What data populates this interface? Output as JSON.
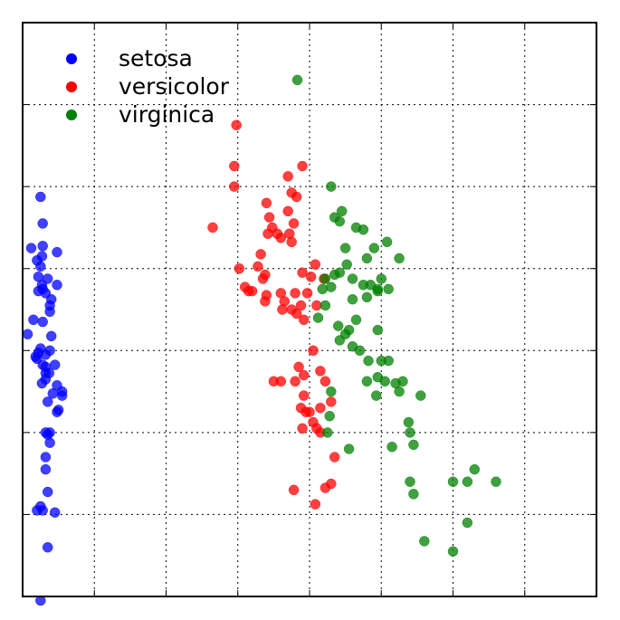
{
  "chart_data": {
    "type": "scatter",
    "title": "",
    "xlabel": "",
    "ylabel": "",
    "xlim": [
      -4,
      4
    ],
    "ylim": [
      -1.5,
      1.3
    ],
    "grid": true,
    "tick_labels_visible": false,
    "legend_position": "top-left",
    "series": [
      {
        "name": "setosa",
        "color": "#0000ff",
        "points": [
          [
            -3.75,
            0.45
          ],
          [
            -3.72,
            0.32
          ],
          [
            -3.72,
            0.21
          ],
          [
            -3.73,
            0.16
          ],
          [
            -3.8,
            0.14
          ],
          [
            -3.75,
            0.11
          ],
          [
            -3.73,
            0.02
          ],
          [
            -3.78,
            0.06
          ],
          [
            -3.72,
            0.0
          ],
          [
            -3.65,
            0.05
          ],
          [
            -3.85,
            -0.15
          ],
          [
            -3.72,
            -0.16
          ],
          [
            -3.62,
            -0.11
          ],
          [
            -3.6,
            -0.05
          ],
          [
            -3.62,
            -0.08
          ],
          [
            -3.68,
            -0.02
          ],
          [
            -3.78,
            -0.01
          ],
          [
            -3.93,
            -0.22
          ],
          [
            -3.88,
            0.2
          ],
          [
            -3.52,
            0.18
          ],
          [
            -3.52,
            0.02
          ],
          [
            -3.75,
            -0.29
          ],
          [
            -3.78,
            -0.31
          ],
          [
            -3.8,
            -0.34
          ],
          [
            -3.68,
            -0.32
          ],
          [
            -3.62,
            -0.3
          ],
          [
            -3.72,
            -0.37
          ],
          [
            -3.68,
            -0.38
          ],
          [
            -3.82,
            -0.33
          ],
          [
            -3.55,
            -0.37
          ],
          [
            -3.63,
            -0.41
          ],
          [
            -3.68,
            -0.41
          ],
          [
            -3.68,
            -0.44
          ],
          [
            -3.73,
            -0.46
          ],
          [
            -3.58,
            -0.51
          ],
          [
            -3.52,
            -0.47
          ],
          [
            -3.65,
            -0.55
          ],
          [
            -3.52,
            -0.6
          ],
          [
            -3.5,
            -0.59
          ],
          [
            -3.62,
            -0.7
          ],
          [
            -3.65,
            -0.71
          ],
          [
            -3.68,
            -0.7
          ],
          [
            -3.62,
            -0.75
          ],
          [
            -3.68,
            -0.82
          ],
          [
            -3.68,
            -0.88
          ],
          [
            -3.65,
            -0.99
          ],
          [
            -3.75,
            -1.06
          ],
          [
            -3.72,
            -1.08
          ],
          [
            -3.8,
            -1.08
          ],
          [
            -3.55,
            -1.09
          ],
          [
            -3.65,
            -1.26
          ],
          [
            -3.75,
            -1.52
          ],
          [
            -3.6,
            -0.23
          ],
          [
            -3.45,
            -0.5
          ],
          [
            -3.45,
            -0.52
          ]
        ]
      },
      {
        "name": "versicolor",
        "color": "#ff0000",
        "points": [
          [
            -1.02,
            0.8
          ],
          [
            -1.05,
            0.6
          ],
          [
            -1.05,
            0.5
          ],
          [
            -0.1,
            0.6
          ],
          [
            -0.3,
            0.55
          ],
          [
            -0.25,
            0.47
          ],
          [
            -0.6,
            0.42
          ],
          [
            -0.3,
            0.38
          ],
          [
            -0.22,
            0.32
          ],
          [
            -0.28,
            0.27
          ],
          [
            -0.25,
            0.23
          ],
          [
            -0.45,
            0.27
          ],
          [
            -0.52,
            0.3
          ],
          [
            -0.56,
            0.35
          ],
          [
            -0.58,
            0.27
          ],
          [
            -0.68,
            0.17
          ],
          [
            -0.72,
            0.11
          ],
          [
            -0.62,
            0.07
          ],
          [
            -0.98,
            0.1
          ],
          [
            -0.85,
            -0.01
          ],
          [
            -0.8,
            -0.01
          ],
          [
            -0.65,
            0.05
          ],
          [
            -0.62,
            -0.06
          ],
          [
            -0.6,
            -0.03
          ],
          [
            -0.35,
            -0.06
          ],
          [
            -0.25,
            -0.1
          ],
          [
            -0.18,
            -0.12
          ],
          [
            -0.2,
            -0.02
          ],
          [
            0.08,
            0.12
          ],
          [
            0.2,
            0.05
          ],
          [
            -0.1,
            0.08
          ],
          [
            -0.03,
            -0.02
          ],
          [
            0.02,
            0.06
          ],
          [
            -0.08,
            -0.15
          ],
          [
            -0.12,
            -0.08
          ],
          [
            0.1,
            -0.08
          ],
          [
            -0.38,
            -0.1
          ],
          [
            -0.4,
            -0.02
          ],
          [
            -0.5,
            -0.45
          ],
          [
            -0.4,
            -0.45
          ],
          [
            -0.08,
            -0.42
          ],
          [
            -0.15,
            -0.38
          ],
          [
            -0.2,
            -0.45
          ],
          [
            -0.08,
            -0.52
          ],
          [
            0.15,
            -0.4
          ],
          [
            0.0,
            -0.6
          ],
          [
            0.1,
            -0.68
          ],
          [
            -0.05,
            -0.6
          ],
          [
            -0.12,
            -0.58
          ],
          [
            0.22,
            -0.45
          ],
          [
            0.3,
            -0.55
          ],
          [
            -0.22,
            -0.98
          ],
          [
            -0.1,
            -0.68
          ],
          [
            0.05,
            -0.65
          ],
          [
            0.15,
            -0.58
          ],
          [
            0.35,
            -0.82
          ],
          [
            0.3,
            -0.95
          ],
          [
            0.22,
            -0.97
          ],
          [
            0.08,
            -1.05
          ],
          [
            0.15,
            -0.7
          ],
          [
            -1.35,
            0.3
          ],
          [
            -0.9,
            0.01
          ],
          [
            -0.18,
            0.45
          ],
          [
            -0.4,
            0.25
          ],
          [
            0.05,
            -0.3
          ]
        ]
      },
      {
        "name": "virginica",
        "color": "#008000",
        "points": [
          [
            -0.17,
            1.02
          ],
          [
            0.3,
            0.5
          ],
          [
            0.35,
            0.35
          ],
          [
            0.45,
            0.38
          ],
          [
            0.42,
            0.33
          ],
          [
            0.5,
            0.2
          ],
          [
            0.65,
            0.3
          ],
          [
            0.75,
            0.29
          ],
          [
            0.9,
            0.2
          ],
          [
            0.8,
            0.15
          ],
          [
            1.08,
            0.23
          ],
          [
            1.25,
            0.15
          ],
          [
            0.42,
            0.08
          ],
          [
            0.52,
            0.12
          ],
          [
            0.6,
            0.05
          ],
          [
            0.75,
            0.02
          ],
          [
            0.85,
            0.02
          ],
          [
            0.95,
            -0.01
          ],
          [
            1.1,
            0.0
          ],
          [
            1.0,
            0.05
          ],
          [
            0.95,
            0.0
          ],
          [
            0.8,
            -0.04
          ],
          [
            0.35,
            0.07
          ],
          [
            0.22,
            0.05
          ],
          [
            0.18,
            0.0
          ],
          [
            0.22,
            -0.08
          ],
          [
            0.12,
            -0.14
          ],
          [
            0.4,
            -0.18
          ],
          [
            0.5,
            -0.22
          ],
          [
            0.55,
            -0.2
          ],
          [
            0.42,
            -0.25
          ],
          [
            0.65,
            -0.15
          ],
          [
            0.95,
            -0.2
          ],
          [
            0.82,
            -0.35
          ],
          [
            0.7,
            -0.3
          ],
          [
            1.0,
            -0.35
          ],
          [
            1.1,
            -0.35
          ],
          [
            1.05,
            -0.45
          ],
          [
            1.2,
            -0.46
          ],
          [
            1.3,
            -0.45
          ],
          [
            0.95,
            -0.43
          ],
          [
            0.6,
            -0.28
          ],
          [
            0.8,
            -0.45
          ],
          [
            0.93,
            -0.52
          ],
          [
            1.25,
            -0.5
          ],
          [
            1.55,
            -0.52
          ],
          [
            1.38,
            -0.65
          ],
          [
            1.4,
            -0.7
          ],
          [
            1.45,
            -0.76
          ],
          [
            1.15,
            -0.77
          ],
          [
            0.55,
            -0.78
          ],
          [
            1.4,
            -0.94
          ],
          [
            1.45,
            -1.0
          ],
          [
            1.6,
            -1.23
          ],
          [
            2.2,
            -0.94
          ],
          [
            2.3,
            -0.88
          ],
          [
            2.0,
            -0.94
          ],
          [
            2.2,
            -1.14
          ],
          [
            2.6,
            -0.94
          ],
          [
            2.0,
            -1.28
          ],
          [
            0.3,
            0.01
          ],
          [
            0.6,
            -0.05
          ],
          [
            0.25,
            -0.7
          ],
          [
            0.28,
            -0.62
          ],
          [
            0.3,
            -0.5
          ]
        ]
      }
    ]
  }
}
